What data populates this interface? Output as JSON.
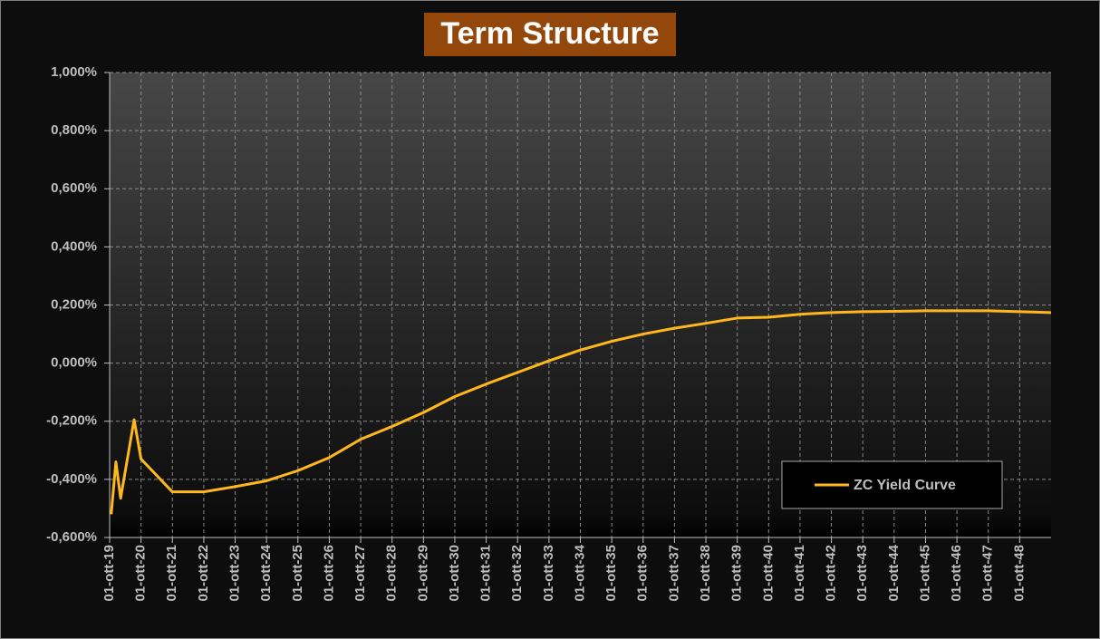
{
  "chart_data": {
    "type": "line",
    "title": "Term Structure",
    "x": [
      2019.8,
      2019.95,
      2020.1,
      2020.53,
      2020.75,
      2021.75,
      2022.75,
      2023.75,
      2024.75,
      2025.75,
      2026.75,
      2027.75,
      2028.75,
      2029.75,
      2030.75,
      2031.75,
      2032.75,
      2033.75,
      2034.75,
      2035.75,
      2036.75,
      2037.75,
      2038.75,
      2039.75,
      2040.75,
      2041.75,
      2042.75,
      2043.75,
      2044.75,
      2045.75,
      2046.75,
      2047.75,
      2048.75,
      2049.75
    ],
    "series": [
      {
        "name": "ZC Yield Curve",
        "color": "#ffb81c",
        "values": [
          -0.52,
          -0.34,
          -0.465,
          -0.195,
          -0.33,
          -0.443,
          -0.443,
          -0.425,
          -0.405,
          -0.37,
          -0.325,
          -0.262,
          -0.218,
          -0.17,
          -0.115,
          -0.072,
          -0.032,
          0.008,
          0.045,
          0.075,
          0.1,
          0.12,
          0.137,
          0.155,
          0.158,
          0.168,
          0.174,
          0.177,
          0.178,
          0.18,
          0.18,
          0.18,
          0.177,
          0.174
        ]
      }
    ],
    "xlim": [
      2019.75,
      2049.75
    ],
    "xticks": [
      {
        "value": 2019.75,
        "label": "01-ott-19"
      },
      {
        "value": 2020.75,
        "label": "01-ott-20"
      },
      {
        "value": 2021.75,
        "label": "01-ott-21"
      },
      {
        "value": 2022.75,
        "label": "01-ott-22"
      },
      {
        "value": 2023.75,
        "label": "01-ott-23"
      },
      {
        "value": 2024.75,
        "label": "01-ott-24"
      },
      {
        "value": 2025.75,
        "label": "01-ott-25"
      },
      {
        "value": 2026.75,
        "label": "01-ott-26"
      },
      {
        "value": 2027.75,
        "label": "01-ott-27"
      },
      {
        "value": 2028.75,
        "label": "01-ott-28"
      },
      {
        "value": 2029.75,
        "label": "01-ott-29"
      },
      {
        "value": 2030.75,
        "label": "01-ott-30"
      },
      {
        "value": 2031.75,
        "label": "01-ott-31"
      },
      {
        "value": 2032.75,
        "label": "01-ott-32"
      },
      {
        "value": 2033.75,
        "label": "01-ott-33"
      },
      {
        "value": 2034.75,
        "label": "01-ott-34"
      },
      {
        "value": 2035.75,
        "label": "01-ott-35"
      },
      {
        "value": 2036.75,
        "label": "01-ott-36"
      },
      {
        "value": 2037.75,
        "label": "01-ott-37"
      },
      {
        "value": 2038.75,
        "label": "01-ott-38"
      },
      {
        "value": 2039.75,
        "label": "01-ott-39"
      },
      {
        "value": 2040.75,
        "label": "01-ott-40"
      },
      {
        "value": 2041.75,
        "label": "01-ott-41"
      },
      {
        "value": 2042.75,
        "label": "01-ott-42"
      },
      {
        "value": 2043.75,
        "label": "01-ott-43"
      },
      {
        "value": 2044.75,
        "label": "01-ott-44"
      },
      {
        "value": 2045.75,
        "label": "01-ott-45"
      },
      {
        "value": 2046.75,
        "label": "01-ott-46"
      },
      {
        "value": 2047.75,
        "label": "01-ott-47"
      },
      {
        "value": 2048.75,
        "label": "01-ott-48"
      }
    ],
    "ylim": [
      -0.6,
      1.0
    ],
    "yticks": [
      {
        "value": -0.6,
        "label": "-0,600%"
      },
      {
        "value": -0.4,
        "label": "-0,400%"
      },
      {
        "value": -0.2,
        "label": "-0,200%"
      },
      {
        "value": 0,
        "label": "0,000%"
      },
      {
        "value": 0.2,
        "label": "0,200%"
      },
      {
        "value": 0.4,
        "label": "0,400%"
      },
      {
        "value": 0.6,
        "label": "0,600%"
      },
      {
        "value": 0.8,
        "label": "0,800%"
      },
      {
        "value": 1.0,
        "label": "1,000%"
      }
    ],
    "grid": true,
    "legend": "lower right"
  }
}
